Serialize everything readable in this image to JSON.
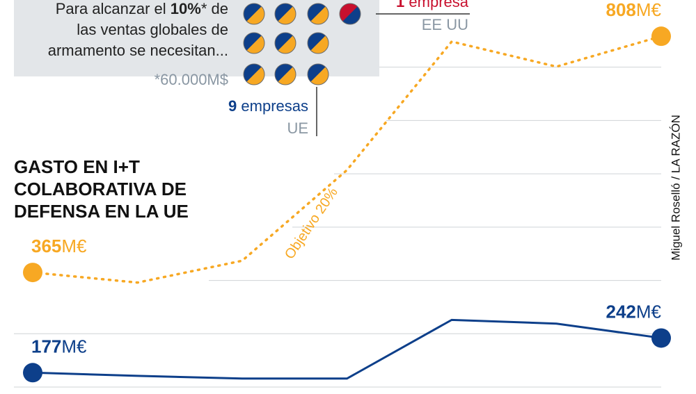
{
  "chart_data": {
    "type": "line",
    "title": [
      "GASTO EN I+T",
      "COLABORATIVA DE",
      "DEFENSA EN LA UE"
    ],
    "categories": [
      null,
      null,
      null,
      null,
      null,
      null,
      null
    ],
    "series": [
      {
        "color": "#f7a823",
        "style": "dotted",
        "values": [
          365,
          346,
          387,
          557,
          798,
          751,
          808
        ],
        "value_labels": [
          "365M€",
          null,
          null,
          null,
          null,
          null,
          "808M€"
        ],
        "annotation": "Objetivo 20%"
      },
      {
        "color": "#0d3f8a",
        "style": "solid",
        "values": [
          177,
          171,
          166,
          166,
          276,
          269,
          242
        ],
        "value_labels": [
          "177M€",
          null,
          null,
          null,
          null,
          null,
          "242M€"
        ]
      }
    ],
    "ylim": [
      137,
      876
    ],
    "yticks": [
      150,
      250,
      350,
      450,
      550,
      650,
      750
    ],
    "grid": true,
    "credit": "Miguel Roselló / LA RAZÓN",
    "inset": {
      "lines": [
        [
          "Para alcanzar el ",
          "10%",
          "* de"
        ],
        [
          "las ventas globales de"
        ],
        [
          "armamento se necesitan..."
        ]
      ],
      "footnote": "*60.000M$",
      "eu": {
        "count": "9",
        "label": " empresas",
        "region": "UE"
      },
      "us": {
        "count": "1",
        "label": " empresa",
        "region": "EE UU"
      }
    }
  }
}
